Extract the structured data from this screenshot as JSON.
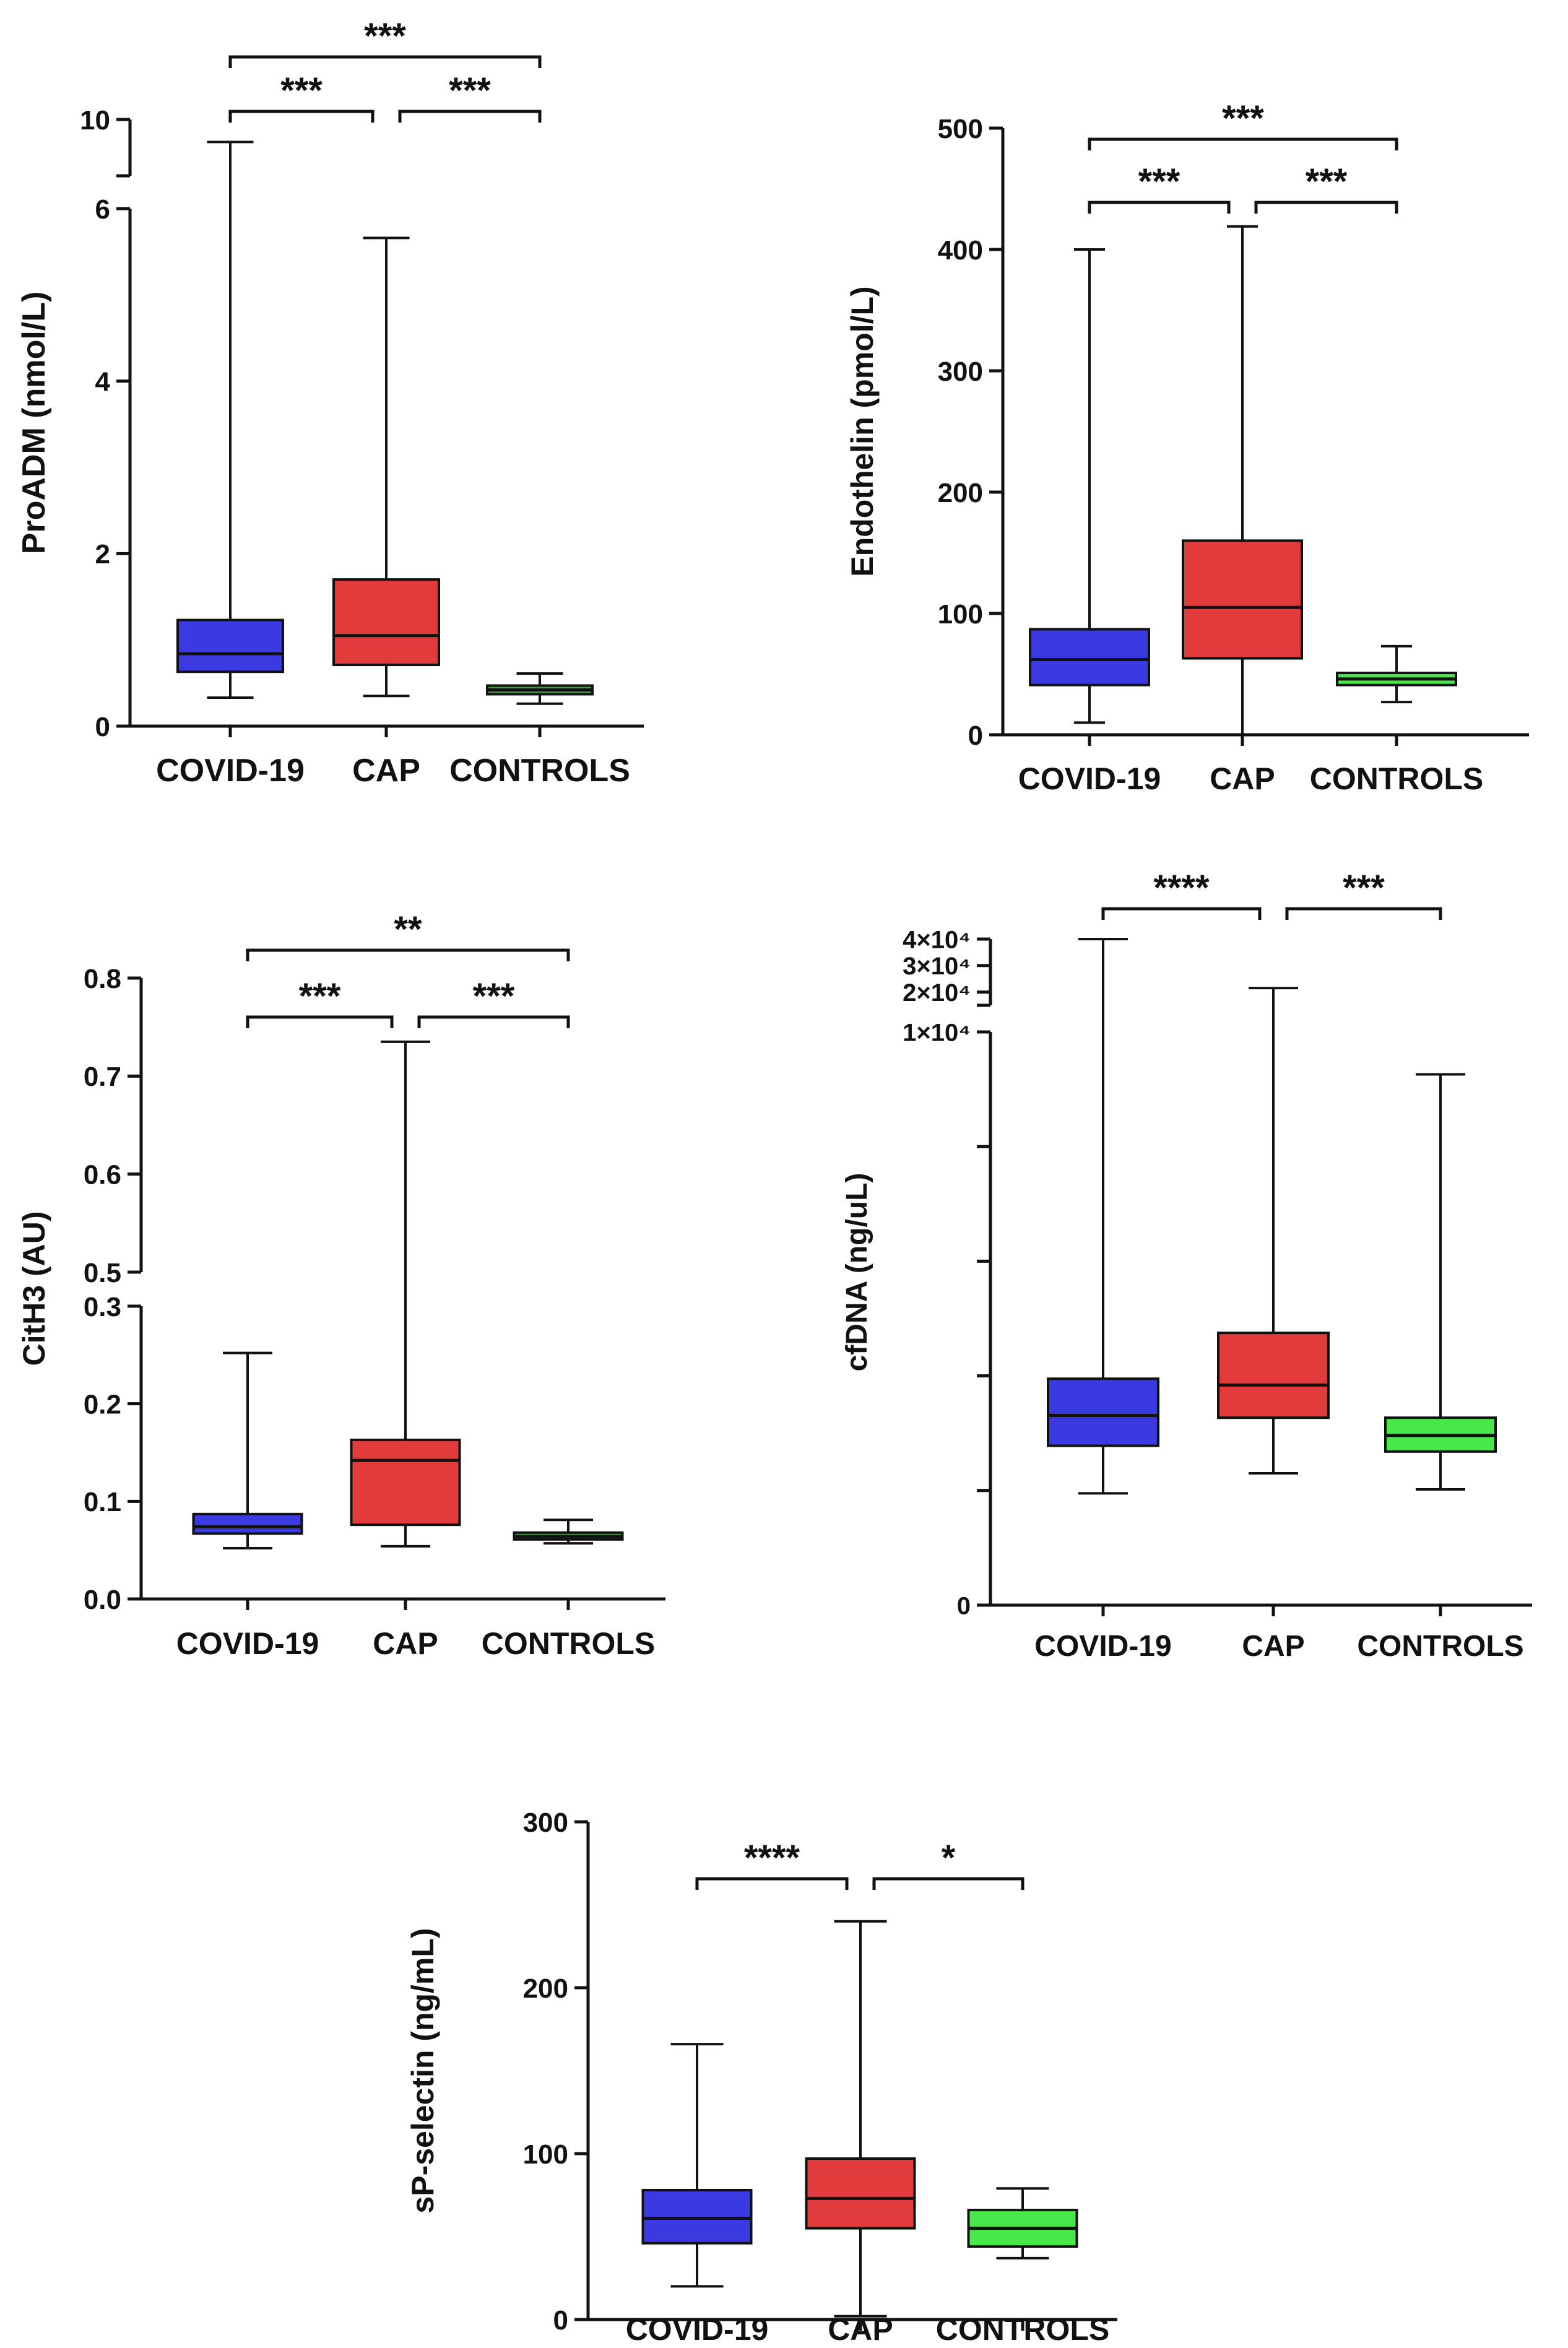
{
  "figure": {
    "background": "#ffffff",
    "axis_color": "#111111"
  },
  "groups": [
    "COVID-19",
    "CAP",
    "CONTROLS"
  ],
  "colors": {
    "COVID-19": "#3a3ae0",
    "CAP": "#e23b3b",
    "CONTROLS": "#49e84a",
    "CONTROLS_dark": "#3f9c3a"
  },
  "chart_data": [
    {
      "id": "proadm",
      "type": "box",
      "ylabel": "ProADM (nmol/L)",
      "categories": [
        "COVID-19",
        "CAP",
        "CONTROLS"
      ],
      "axis_break": {
        "lower": [
          0,
          6
        ],
        "upper": [
          9.5,
          10
        ]
      },
      "ticks_lower": [
        0,
        2,
        4,
        6
      ],
      "ticks_upper": [
        10
      ],
      "tick_labels_lower": [
        "0",
        "2",
        "4",
        "6"
      ],
      "tick_labels_upper": [
        "10"
      ],
      "series": [
        {
          "name": "COVID-19",
          "min": 0.33,
          "q1": 0.63,
          "median": 0.84,
          "q3": 1.23,
          "max": 9.8,
          "color": "#3a3ae0"
        },
        {
          "name": "CAP",
          "min": 0.35,
          "q1": 0.71,
          "median": 1.05,
          "q3": 1.7,
          "max": 5.66,
          "color": "#e23b3b"
        },
        {
          "name": "CONTROLS",
          "min": 0.26,
          "q1": 0.37,
          "median": 0.42,
          "q3": 0.47,
          "max": 0.61,
          "color": "#3f9c3a"
        }
      ],
      "significance": [
        {
          "from": 0,
          "to": 1,
          "label": "***",
          "level": 0
        },
        {
          "from": 1,
          "to": 2,
          "label": "***",
          "level": 0
        },
        {
          "from": 0,
          "to": 2,
          "label": "***",
          "level": 1
        }
      ]
    },
    {
      "id": "endothelin",
      "type": "box",
      "ylabel": "Endothelin (pmol/L)",
      "categories": [
        "COVID-19",
        "CAP",
        "CONTROLS"
      ],
      "ylim": [
        0,
        500
      ],
      "ticks": [
        0,
        100,
        200,
        300,
        400,
        500
      ],
      "tick_labels": [
        "0",
        "100",
        "200",
        "300",
        "400",
        "500"
      ],
      "series": [
        {
          "name": "COVID-19",
          "min": 10,
          "q1": 41,
          "median": 62,
          "q3": 87,
          "max": 400,
          "color": "#3a3ae0"
        },
        {
          "name": "CAP",
          "min": 0,
          "q1": 63,
          "median": 105,
          "q3": 160,
          "max": 419,
          "color": "#e23b3b"
        },
        {
          "name": "CONTROLS",
          "min": 27,
          "q1": 41,
          "median": 46,
          "q3": 51,
          "max": 73,
          "color": "#49e84a"
        }
      ],
      "significance": [
        {
          "from": 0,
          "to": 1,
          "label": "***",
          "level": 0
        },
        {
          "from": 1,
          "to": 2,
          "label": "***",
          "level": 0
        },
        {
          "from": 0,
          "to": 2,
          "label": "***",
          "level": 1
        }
      ]
    },
    {
      "id": "cith3",
      "type": "box",
      "ylabel": "CitH3 (AU)",
      "categories": [
        "COVID-19",
        "CAP",
        "CONTROLS"
      ],
      "axis_break": {
        "lower": [
          0,
          0.3
        ],
        "upper": [
          0.5,
          0.8
        ]
      },
      "ticks_lower": [
        0,
        0.1,
        0.2,
        0.3
      ],
      "ticks_upper": [
        0.5,
        0.6,
        0.7,
        0.8
      ],
      "tick_labels_lower": [
        "0.0",
        "0.1",
        "0.2",
        "0.3"
      ],
      "tick_labels_upper": [
        "0.5",
        "0.6",
        "0.7",
        "0.8"
      ],
      "series": [
        {
          "name": "COVID-19",
          "min": 0.052,
          "q1": 0.067,
          "median": 0.074,
          "q3": 0.087,
          "max": 0.252,
          "color": "#3a3ae0"
        },
        {
          "name": "CAP",
          "min": 0.054,
          "q1": 0.076,
          "median": 0.142,
          "q3": 0.163,
          "max": 0.735,
          "color": "#e23b3b"
        },
        {
          "name": "CONTROLS",
          "min": 0.057,
          "q1": 0.061,
          "median": 0.064,
          "q3": 0.068,
          "max": 0.081,
          "color": "#3f9c3a"
        }
      ],
      "significance": [
        {
          "from": 0,
          "to": 1,
          "label": "***",
          "level": 0
        },
        {
          "from": 1,
          "to": 2,
          "label": "***",
          "level": 0
        },
        {
          "from": 0,
          "to": 2,
          "label": "**",
          "level": 1
        }
      ]
    },
    {
      "id": "cfdna",
      "type": "box",
      "ylabel": "cfDNA (ng/uL)",
      "categories": [
        "COVID-19",
        "CAP",
        "CONTROLS"
      ],
      "axis_break": {
        "lower": [
          0,
          10000
        ],
        "upper": [
          15000,
          40000
        ]
      },
      "ticks_lower": [
        0,
        2000,
        4000,
        6000,
        8000,
        10000
      ],
      "ticks_upper": [
        20000,
        30000,
        40000
      ],
      "tick_labels_lower": [
        "0",
        "",
        "",
        "",
        "",
        "1×10⁴"
      ],
      "tick_labels_upper": [
        "2×10⁴",
        "3×10⁴",
        "4×10⁴"
      ],
      "series": [
        {
          "name": "COVID-19",
          "min": 1950,
          "q1": 2780,
          "median": 3310,
          "q3": 3950,
          "max": 40000,
          "color": "#3a3ae0"
        },
        {
          "name": "CAP",
          "min": 2300,
          "q1": 3270,
          "median": 3840,
          "q3": 4750,
          "max": 21500,
          "color": "#e23b3b"
        },
        {
          "name": "CONTROLS",
          "min": 2020,
          "q1": 2680,
          "median": 2960,
          "q3": 3270,
          "max": 9260,
          "color": "#49e84a"
        }
      ],
      "significance": [
        {
          "from": 0,
          "to": 1,
          "label": "****",
          "level": 0
        },
        {
          "from": 1,
          "to": 2,
          "label": "***",
          "level": 0
        }
      ]
    },
    {
      "id": "spselectin",
      "type": "box",
      "ylabel": "sP-selectin (ng/mL)",
      "categories": [
        "COVID-19",
        "CAP",
        "CONTROLS"
      ],
      "ylim": [
        0,
        300
      ],
      "ticks": [
        0,
        100,
        200,
        300
      ],
      "tick_labels": [
        "0",
        "100",
        "200",
        "300"
      ],
      "series": [
        {
          "name": "COVID-19",
          "min": 20,
          "q1": 46,
          "median": 61,
          "q3": 78,
          "max": 166,
          "color": "#3a3ae0"
        },
        {
          "name": "CAP",
          "min": 2,
          "q1": 55,
          "median": 73,
          "q3": 97,
          "max": 240,
          "color": "#e23b3b"
        },
        {
          "name": "CONTROLS",
          "min": 37,
          "q1": 44,
          "median": 55,
          "q3": 66,
          "max": 79,
          "color": "#49e84a"
        }
      ],
      "significance": [
        {
          "from": 0,
          "to": 1,
          "label": "****",
          "level": 0
        },
        {
          "from": 1,
          "to": 2,
          "label": "*",
          "level": 0
        }
      ]
    }
  ]
}
